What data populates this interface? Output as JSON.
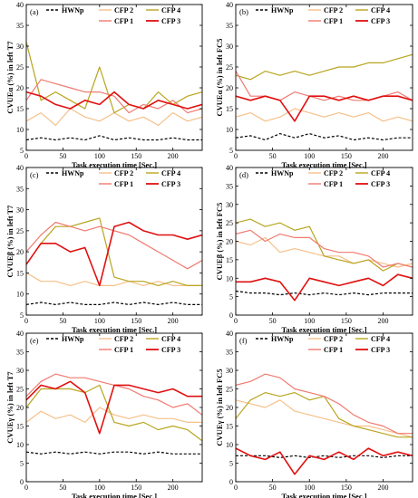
{
  "colors": {
    "HWNp": "#000000",
    "CFP 1": "#f07a70",
    "CFP 2": "#f5c08a",
    "CFP 3": "#e01010",
    "CFP 4": "#b8a51e"
  },
  "chart_data": [
    {
      "type": "line",
      "panel_letter": "(a)",
      "xlabel": "Task execution time [Sec.]",
      "ylabel": "CVUEα (%) in left T7",
      "xlim": [
        0,
        240
      ],
      "ylim": [
        5,
        40
      ],
      "xticks": [
        "0",
        "50",
        "100",
        "150",
        "200"
      ],
      "yticks": [
        "5",
        "10",
        "15",
        "20",
        "25",
        "30",
        "35",
        "40"
      ],
      "legend": [
        "HWNp",
        "CFP 2",
        "CFP 4",
        "CFP 1",
        "CFP 3"
      ],
      "x": [
        0,
        20,
        40,
        60,
        80,
        100,
        120,
        140,
        160,
        180,
        200,
        220,
        240
      ],
      "series": [
        {
          "name": "HWNp",
          "dash": true,
          "values": [
            7.5,
            8,
            7.5,
            8,
            7.5,
            8.5,
            7.5,
            8,
            7.5,
            7.5,
            8,
            7.5,
            7.5
          ]
        },
        {
          "name": "CFP 2",
          "values": [
            12,
            14,
            11,
            15,
            13,
            12,
            14,
            12,
            13,
            11,
            14,
            12,
            13
          ]
        },
        {
          "name": "CFP 4",
          "values": [
            31,
            17,
            19,
            17,
            15,
            25,
            14,
            16,
            15,
            19,
            16,
            18,
            19
          ]
        },
        {
          "name": "CFP 1",
          "values": [
            17,
            22,
            21,
            20,
            19,
            19,
            18,
            14,
            16,
            15,
            17,
            14,
            15
          ]
        },
        {
          "name": "CFP 3",
          "values": [
            19,
            18,
            16,
            15,
            17,
            16,
            19,
            16,
            15,
            17,
            16,
            15,
            16
          ]
        }
      ]
    },
    {
      "type": "line",
      "panel_letter": "(b)",
      "xlabel": "Task execution time [Sec.]",
      "ylabel": "CVUEα (%) in left FC5",
      "xlim": [
        0,
        240
      ],
      "ylim": [
        5,
        40
      ],
      "xticks": [
        "0",
        "50",
        "100",
        "150",
        "200"
      ],
      "yticks": [
        "5",
        "10",
        "15",
        "20",
        "25",
        "30",
        "35",
        "40"
      ],
      "legend": [
        "HWNp",
        "CFP 2",
        "CFP 4",
        "CFP 1",
        "CFP 3"
      ],
      "x": [
        0,
        20,
        40,
        60,
        80,
        100,
        120,
        140,
        160,
        180,
        200,
        220,
        240
      ],
      "series": [
        {
          "name": "HWNp",
          "dash": true,
          "values": [
            8,
            8.5,
            7.5,
            9,
            8,
            9,
            8,
            8.5,
            7.5,
            8,
            7.5,
            8,
            8
          ]
        },
        {
          "name": "CFP 2",
          "values": [
            13,
            14,
            12,
            13,
            15,
            14,
            13,
            14,
            13,
            14,
            12,
            13,
            12
          ]
        },
        {
          "name": "CFP 4",
          "values": [
            23,
            22,
            24,
            23,
            24,
            23,
            24,
            25,
            25,
            26,
            26,
            27,
            28
          ]
        },
        {
          "name": "CFP 1",
          "values": [
            24,
            18,
            18,
            17,
            19,
            18,
            17,
            18,
            17,
            17,
            18,
            19,
            17
          ]
        },
        {
          "name": "CFP 3",
          "values": [
            18,
            17,
            18,
            17,
            12,
            18,
            18,
            17,
            18,
            17,
            18,
            18,
            17
          ]
        }
      ]
    },
    {
      "type": "line",
      "panel_letter": "(c)",
      "xlabel": "Task execution time [Sec.]",
      "ylabel": "CVUEβ (%) in left T7",
      "xlim": [
        0,
        240
      ],
      "ylim": [
        5,
        40
      ],
      "xticks": [
        "0",
        "50",
        "100",
        "150",
        "200"
      ],
      "yticks": [
        "5",
        "10",
        "15",
        "20",
        "25",
        "30",
        "35",
        "40"
      ],
      "legend": [
        "HWNp",
        "CFP 2",
        "CFP 4",
        "CFP 1",
        "CFP 3"
      ],
      "x": [
        0,
        20,
        40,
        60,
        80,
        100,
        120,
        140,
        160,
        180,
        200,
        220,
        240
      ],
      "series": [
        {
          "name": "HWNp",
          "dash": true,
          "values": [
            7.5,
            8,
            7.5,
            8,
            7.5,
            7.5,
            8,
            7.5,
            8,
            7.5,
            8,
            7.5,
            7.5
          ]
        },
        {
          "name": "CFP 2",
          "values": [
            15,
            13,
            13,
            12,
            13,
            12,
            12,
            13,
            12,
            13,
            12,
            12,
            12
          ]
        },
        {
          "name": "CFP 4",
          "values": [
            17,
            22,
            26,
            26,
            27,
            28,
            14,
            13,
            13,
            12,
            13,
            12,
            12
          ]
        },
        {
          "name": "CFP 1",
          "values": [
            20,
            24,
            27,
            26,
            25,
            26,
            25,
            24,
            22,
            20,
            18,
            16,
            18
          ]
        },
        {
          "name": "CFP 3",
          "values": [
            17,
            22,
            22,
            20,
            21,
            12,
            26,
            27,
            25,
            24,
            24,
            23,
            24
          ]
        }
      ]
    },
    {
      "type": "line",
      "panel_letter": "(d)",
      "xlabel": "Task execution time [Sec.]",
      "ylabel": "CVUEβ (%) in left FC5",
      "xlim": [
        0,
        240
      ],
      "ylim": [
        0,
        40
      ],
      "xticks": [
        "0",
        "50",
        "100",
        "150",
        "200"
      ],
      "yticks": [
        "0",
        "5",
        "10",
        "15",
        "20",
        "25",
        "30",
        "35",
        "40"
      ],
      "legend": [
        "HWNp",
        "CFP 2",
        "CFP 4",
        "CFP 1",
        "CFP 3"
      ],
      "x": [
        0,
        20,
        40,
        60,
        80,
        100,
        120,
        140,
        160,
        180,
        200,
        220,
        240
      ],
      "series": [
        {
          "name": "HWNp",
          "dash": true,
          "values": [
            6.5,
            6,
            6,
            5.5,
            6,
            5.5,
            6,
            5.5,
            6,
            5.5,
            6,
            6,
            6
          ]
        },
        {
          "name": "CFP 2",
          "values": [
            20,
            19,
            21,
            17,
            18,
            17,
            16,
            16,
            14,
            15,
            14,
            13,
            14
          ]
        },
        {
          "name": "CFP 4",
          "values": [
            25,
            26,
            24,
            25,
            23,
            24,
            16,
            15,
            14,
            15,
            12,
            14,
            13
          ]
        },
        {
          "name": "CFP 1",
          "values": [
            22,
            23,
            20,
            22,
            21,
            21,
            18,
            17,
            17,
            16,
            13,
            14,
            13
          ]
        },
        {
          "name": "CFP 3",
          "values": [
            9,
            9,
            10,
            9,
            4,
            10,
            9,
            8,
            9,
            10,
            8,
            11,
            10
          ]
        }
      ]
    },
    {
      "type": "line",
      "panel_letter": "(e)",
      "xlabel": "Task execution time [Sec.]",
      "ylabel": "CVUEγ (%) in left T7",
      "xlim": [
        0,
        240
      ],
      "ylim": [
        0,
        40
      ],
      "xticks": [
        "0",
        "50",
        "100",
        "150",
        "200"
      ],
      "yticks": [
        "0",
        "5",
        "10",
        "15",
        "20",
        "25",
        "30",
        "35",
        "40"
      ],
      "legend": [
        "HWNp",
        "CFP 2",
        "CFP 4",
        "CFP 1",
        "CFP 3"
      ],
      "x": [
        0,
        20,
        40,
        60,
        80,
        100,
        120,
        140,
        160,
        180,
        200,
        220,
        240
      ],
      "series": [
        {
          "name": "HWNp",
          "dash": true,
          "values": [
            8,
            7.5,
            8,
            7.5,
            8,
            7.5,
            8,
            8,
            7.5,
            8,
            7.5,
            7.5,
            7.5
          ]
        },
        {
          "name": "CFP 2",
          "values": [
            16,
            19,
            17,
            18,
            16,
            20,
            18,
            17,
            18,
            17,
            17,
            16,
            16
          ]
        },
        {
          "name": "CFP 4",
          "values": [
            20,
            25,
            25,
            25,
            24,
            26,
            16,
            15,
            16,
            14,
            15,
            14,
            11
          ]
        },
        {
          "name": "CFP 1",
          "values": [
            23,
            27,
            29,
            28,
            28,
            27,
            26,
            25,
            23,
            22,
            20,
            21,
            18
          ]
        },
        {
          "name": "CFP 3",
          "values": [
            22,
            26,
            25,
            27,
            24,
            13,
            26,
            26,
            25,
            24,
            25,
            23,
            23
          ]
        }
      ]
    },
    {
      "type": "line",
      "panel_letter": "(f)",
      "xlabel": "Task execution time [Sec.]",
      "ylabel": "CVUEγ (%) in left FC5",
      "xlim": [
        0,
        240
      ],
      "ylim": [
        0,
        40
      ],
      "xticks": [
        "0",
        "50",
        "100",
        "150",
        "200"
      ],
      "yticks": [
        "0",
        "5",
        "10",
        "15",
        "20",
        "25",
        "30",
        "35",
        "40"
      ],
      "legend": [
        "HWNp",
        "CFP 2",
        "CFP 4",
        "CFP 1",
        "CFP 3"
      ],
      "x": [
        0,
        20,
        40,
        60,
        80,
        100,
        120,
        140,
        160,
        180,
        200,
        220,
        240
      ],
      "series": [
        {
          "name": "HWNp",
          "dash": true,
          "values": [
            7,
            7,
            7,
            6.5,
            7,
            6.5,
            7,
            6.5,
            7,
            7,
            6.5,
            7,
            7
          ]
        },
        {
          "name": "CFP 2",
          "values": [
            22,
            21,
            20,
            22,
            19,
            18,
            17,
            16,
            15,
            15,
            14,
            13,
            12
          ]
        },
        {
          "name": "CFP 4",
          "values": [
            17,
            22,
            24,
            23,
            24,
            22,
            23,
            17,
            15,
            14,
            13,
            12,
            12
          ]
        },
        {
          "name": "CFP 1",
          "values": [
            26,
            27,
            29,
            28,
            25,
            24,
            23,
            21,
            18,
            16,
            15,
            13,
            13
          ]
        },
        {
          "name": "CFP 3",
          "values": [
            9,
            7,
            6,
            8,
            2,
            7,
            6,
            8,
            6,
            9,
            7,
            8,
            7
          ]
        }
      ]
    }
  ]
}
